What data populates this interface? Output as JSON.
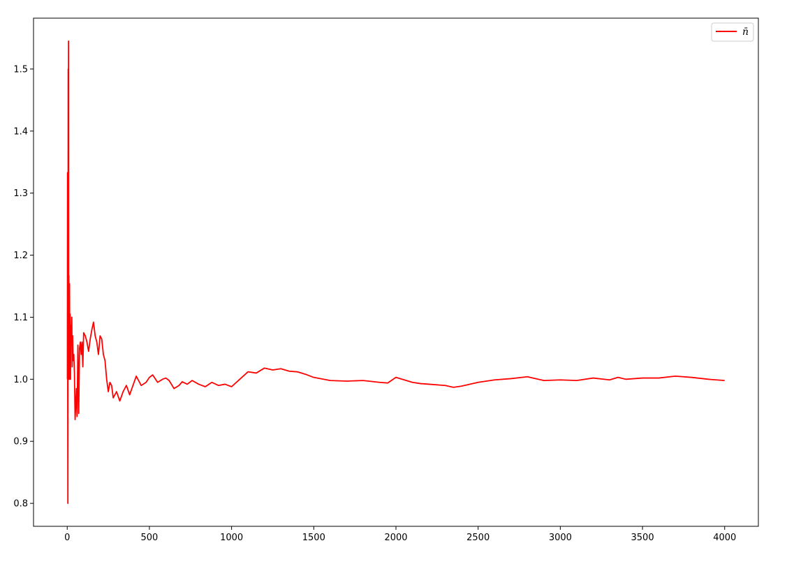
{
  "chart_data": {
    "type": "line",
    "title": "",
    "xlabel": "",
    "ylabel": "",
    "xlim": [
      -205,
      4205
    ],
    "ylim": [
      0.763,
      1.582
    ],
    "x_ticks": [
      0,
      500,
      1000,
      1500,
      2000,
      2500,
      3000,
      3500,
      4000
    ],
    "x_tick_labels": [
      "0",
      "500",
      "1000",
      "1500",
      "2000",
      "2500",
      "3000",
      "3500",
      "4000"
    ],
    "y_ticks": [
      0.8,
      0.9,
      1.0,
      1.1,
      1.2,
      1.3,
      1.4,
      1.5
    ],
    "y_tick_labels": [
      "0.8",
      "0.9",
      "1.0",
      "1.1",
      "1.2",
      "1.3",
      "1.4",
      "1.5"
    ],
    "grid": false,
    "legend_position": "top-right",
    "series": [
      {
        "name": "n̄",
        "color": "#ff0000",
        "x": [
          1,
          2,
          3,
          4,
          5,
          6,
          7,
          8,
          9,
          10,
          12,
          14,
          16,
          18,
          20,
          22,
          25,
          28,
          30,
          33,
          36,
          40,
          44,
          48,
          52,
          56,
          60,
          65,
          70,
          75,
          80,
          85,
          90,
          95,
          100,
          110,
          120,
          130,
          140,
          150,
          160,
          170,
          180,
          190,
          200,
          210,
          220,
          230,
          240,
          250,
          260,
          270,
          280,
          300,
          320,
          340,
          360,
          380,
          400,
          420,
          450,
          480,
          500,
          520,
          550,
          580,
          600,
          620,
          650,
          680,
          700,
          730,
          760,
          800,
          840,
          880,
          920,
          960,
          1000,
          1050,
          1100,
          1150,
          1200,
          1250,
          1300,
          1350,
          1400,
          1450,
          1500,
          1600,
          1700,
          1800,
          1900,
          1950,
          2000,
          2100,
          2150,
          2200,
          2300,
          2350,
          2400,
          2500,
          2600,
          2700,
          2800,
          2900,
          3000,
          3100,
          3200,
          3300,
          3350,
          3400,
          3500,
          3600,
          3700,
          3800,
          3900,
          4000
        ],
        "values": [
          1.0,
          1.333,
          1.0,
          0.8,
          1.0,
          1.5,
          1.286,
          1.545,
          1.0,
          1.167,
          1.077,
          1.154,
          1.0,
          1.105,
          1.0,
          1.087,
          1.06,
          1.1,
          1.02,
          1.07,
          1.03,
          1.04,
          1.01,
          0.935,
          0.96,
          0.985,
          0.94,
          1.055,
          0.945,
          1.05,
          1.06,
          1.04,
          1.06,
          1.02,
          1.075,
          1.07,
          1.06,
          1.045,
          1.065,
          1.08,
          1.092,
          1.07,
          1.06,
          1.04,
          1.07,
          1.065,
          1.04,
          1.03,
          1.0,
          0.98,
          0.995,
          0.99,
          0.97,
          0.98,
          0.965,
          0.98,
          0.99,
          0.975,
          0.99,
          1.005,
          0.99,
          0.995,
          1.003,
          1.007,
          0.995,
          1.0,
          1.002,
          0.998,
          0.985,
          0.99,
          0.996,
          0.992,
          0.998,
          0.992,
          0.988,
          0.995,
          0.99,
          0.992,
          0.988,
          1.0,
          1.012,
          1.01,
          1.018,
          1.015,
          1.017,
          1.013,
          1.012,
          1.008,
          1.003,
          0.998,
          0.997,
          0.998,
          0.995,
          0.994,
          1.003,
          0.995,
          0.993,
          0.992,
          0.99,
          0.987,
          0.989,
          0.995,
          0.999,
          1.001,
          1.004,
          0.998,
          0.999,
          0.998,
          1.002,
          0.999,
          1.003,
          1.0,
          1.002,
          1.002,
          1.005,
          1.003,
          1.0,
          0.998
        ]
      }
    ]
  }
}
